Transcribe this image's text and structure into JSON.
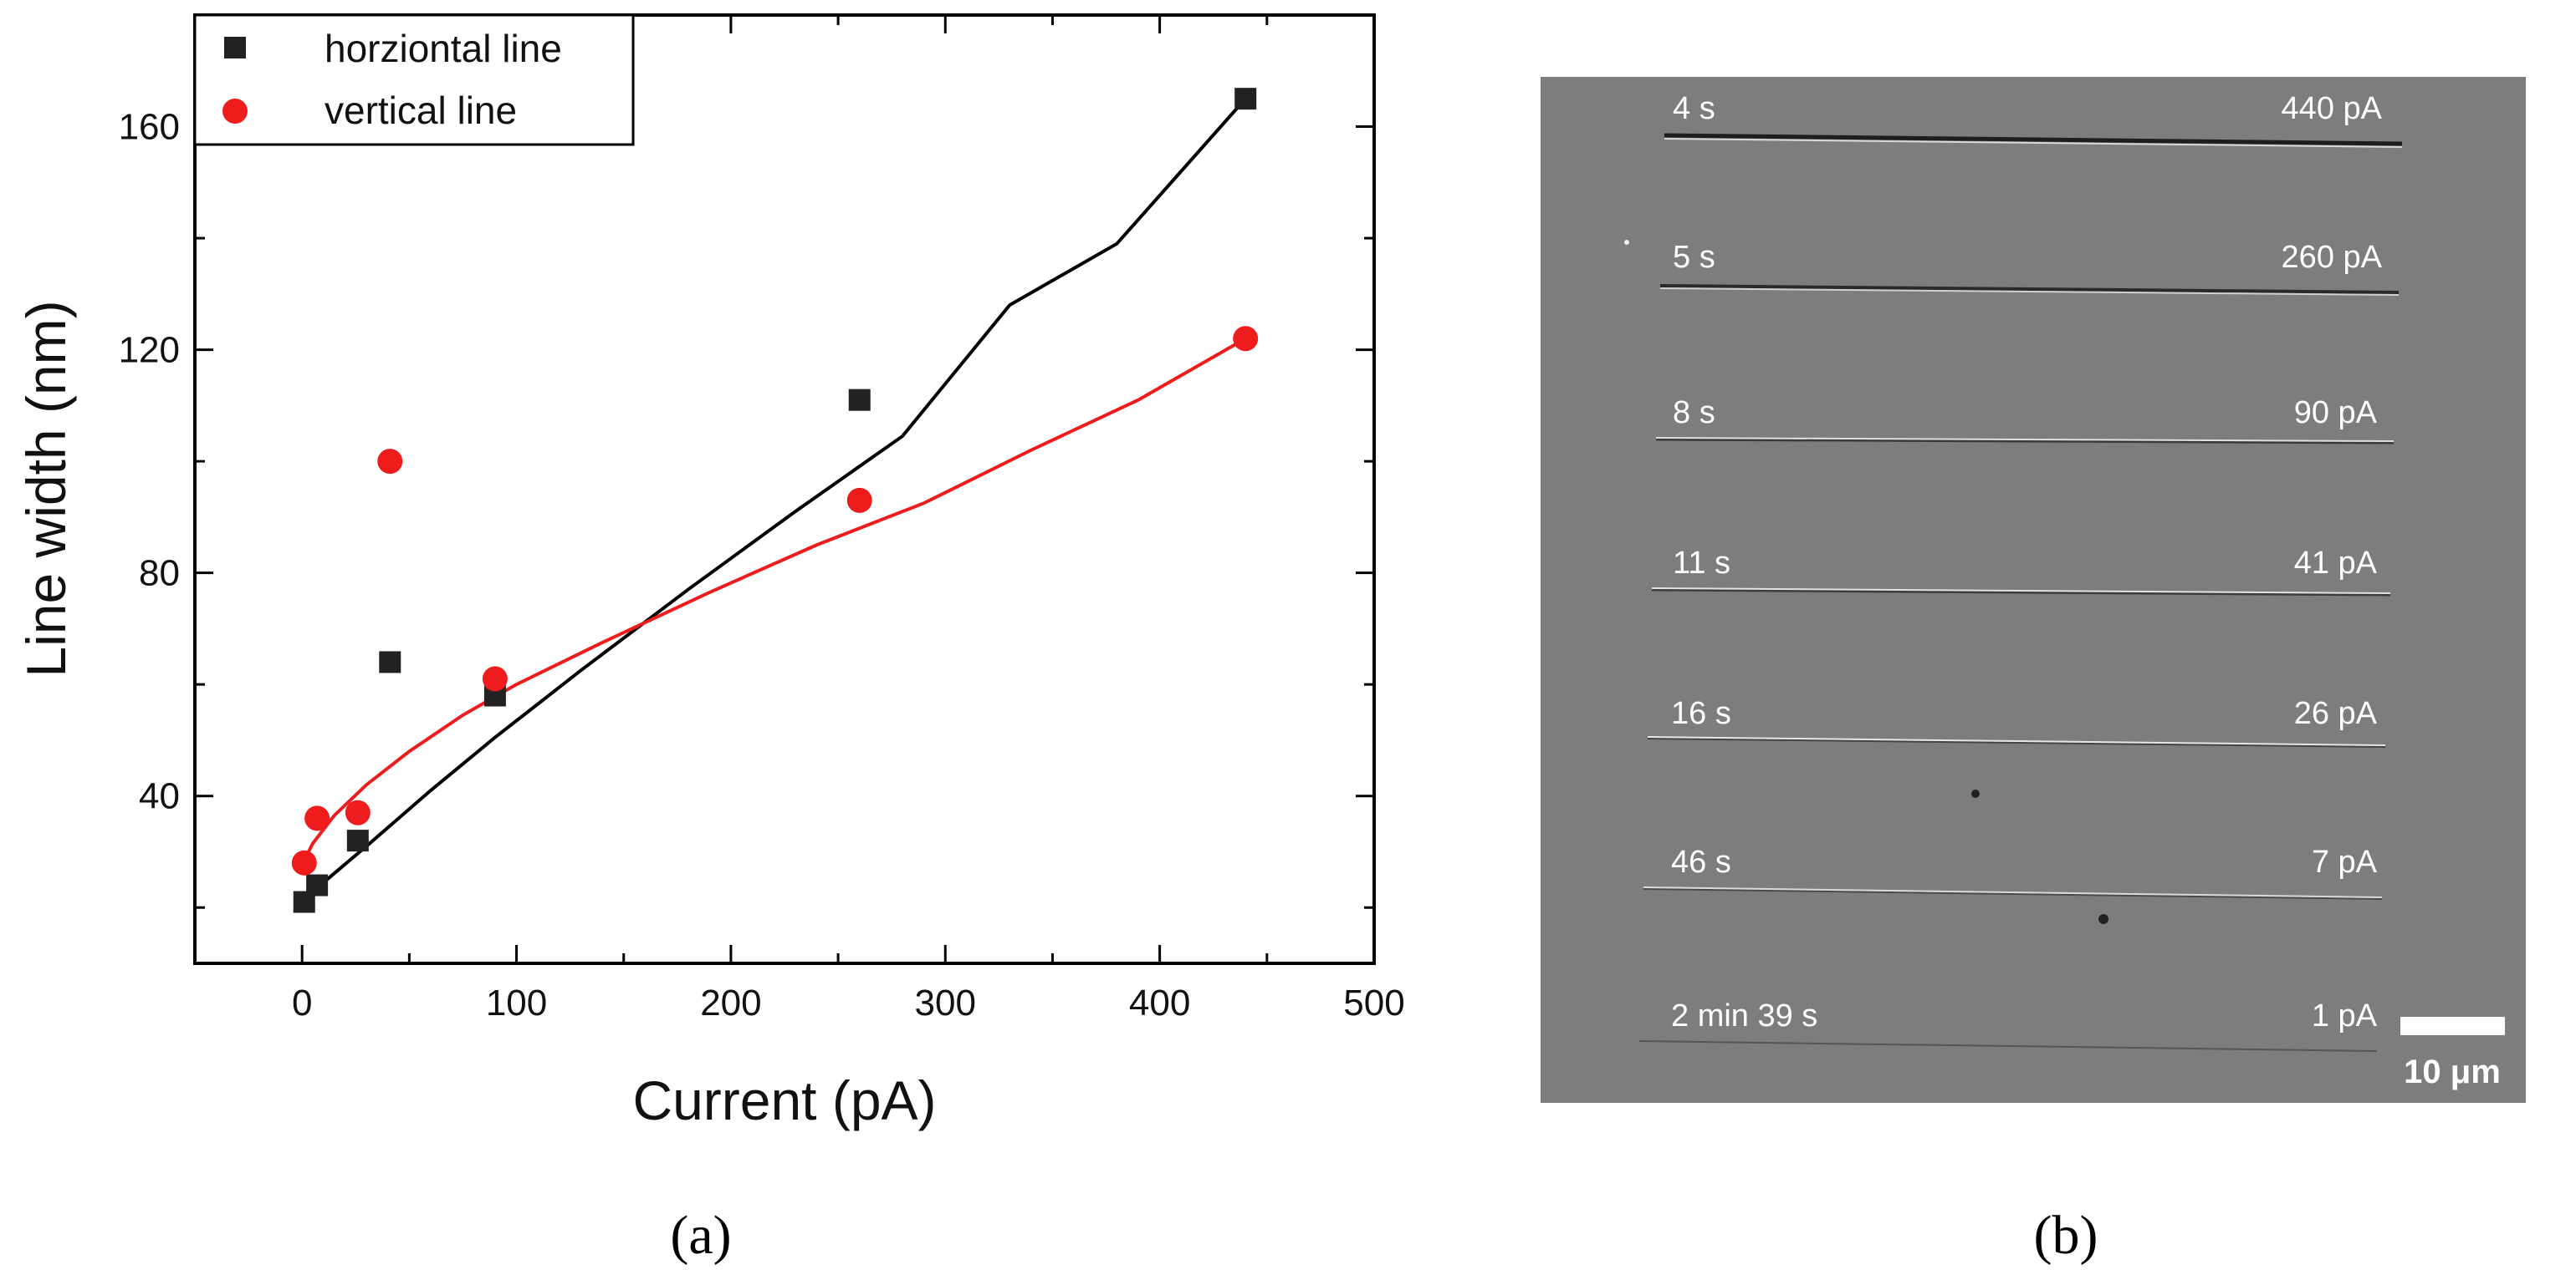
{
  "chart_data": {
    "type": "scatter",
    "xlabel": "Current (pA)",
    "ylabel": "Line width (nm)",
    "xlim": [
      -50,
      500
    ],
    "ylim": [
      10,
      180
    ],
    "xticks": [
      0,
      100,
      200,
      300,
      400,
      500
    ],
    "yticks": [
      40,
      80,
      120,
      160
    ],
    "legend_position": "top-left",
    "series": [
      {
        "name": "horziontal line",
        "marker": "square",
        "color": "#222222",
        "x": [
          1,
          7,
          26,
          41,
          90,
          260,
          440
        ],
        "y": [
          21,
          24,
          32,
          64,
          58,
          111,
          165
        ],
        "fit": {
          "x": [
            1,
            10,
            30,
            60,
            90,
            130,
            180,
            230,
            280,
            330,
            380,
            440
          ],
          "y": [
            21.5,
            24.5,
            31,
            41,
            50.5,
            62.5,
            77,
            91,
            104.5,
            128,
            139,
            165
          ]
        }
      },
      {
        "name": "vertical line",
        "marker": "circle",
        "color": "#ee1c1c",
        "x": [
          1,
          7,
          26,
          41,
          90,
          260,
          440
        ],
        "y": [
          28,
          36,
          37,
          100,
          61,
          93,
          122
        ],
        "fit": {
          "x": [
            1,
            5,
            15,
            30,
            50,
            75,
            100,
            140,
            190,
            240,
            290,
            340,
            390,
            440
          ],
          "y": [
            28.5,
            31.5,
            36.5,
            42,
            48,
            54.5,
            60,
            67.5,
            76.5,
            85,
            92.5,
            102,
            111,
            122
          ]
        }
      }
    ]
  },
  "panel_a": {
    "label_text": "(a)"
  },
  "panel_b": {
    "label_text": "(b)",
    "lines": [
      {
        "time": "4 s",
        "current": "440 pA"
      },
      {
        "time": "5 s",
        "current": "260 pA"
      },
      {
        "time": "8 s",
        "current": "90 pA"
      },
      {
        "time": "11 s",
        "current": "41 pA"
      },
      {
        "time": "16 s",
        "current": "26 pA"
      },
      {
        "time": "46 s",
        "current": "7 pA"
      },
      {
        "time": "2 min 39 s",
        "current": "1 pA"
      }
    ],
    "scale_bar_label": "10 μm"
  },
  "colors": {
    "sem_background": "#7f7f7f",
    "fit_black": "#000000",
    "fit_red": "#ee1c1c"
  }
}
